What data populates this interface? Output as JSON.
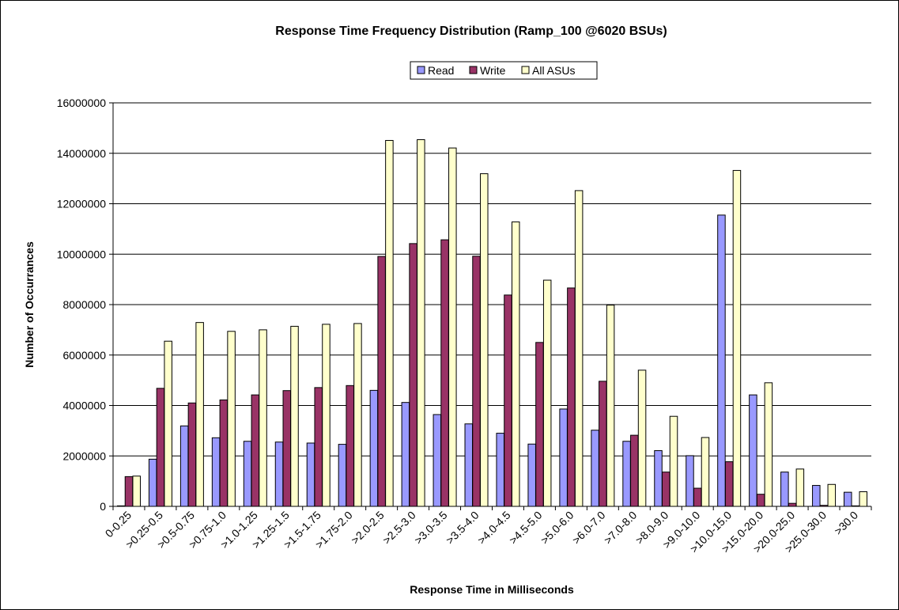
{
  "chart_data": {
    "type": "bar",
    "title": "Response Time Frequency Distribution (Ramp_100 @6020 BSUs)",
    "xlabel": "Response Time in Milliseconds",
    "ylabel": "Number of Occurrances",
    "ylim": [
      0,
      16000000
    ],
    "yticks": [
      0,
      2000000,
      4000000,
      6000000,
      8000000,
      10000000,
      12000000,
      14000000,
      16000000
    ],
    "grid": true,
    "legend_position": "top-center",
    "categories": [
      "0-0.25",
      ">0.25-0.5",
      ">0.5-0.75",
      ">0.75-1.0",
      ">1.0-1.25",
      ">1.25-1.5",
      ">1.5-1.75",
      ">1.75-2.0",
      ">2.0-2.5",
      ">2.5-3.0",
      ">3.0-3.5",
      ">3.5-4.0",
      ">4.0-4.5",
      ">4.5-5.0",
      ">5.0-6.0",
      ">6.0-7.0",
      ">7.0-8.0",
      ">8.0-9.0",
      ">9.0-10.0",
      ">10.0-15.0",
      ">15.0-20.0",
      ">20.0-25.0",
      ">25.0-30.0",
      ">30.0"
    ],
    "series": [
      {
        "name": "Read",
        "color": "#9999ff",
        "values": [
          20000,
          1870000,
          3190000,
          2720000,
          2580000,
          2550000,
          2510000,
          2460000,
          4600000,
          4120000,
          3640000,
          3270000,
          2900000,
          2470000,
          3860000,
          3020000,
          2580000,
          2210000,
          2010000,
          11550000,
          4420000,
          1360000,
          830000,
          560000
        ]
      },
      {
        "name": "Write",
        "color": "#993366",
        "values": [
          1180000,
          4680000,
          4100000,
          4220000,
          4420000,
          4590000,
          4710000,
          4790000,
          9910000,
          10420000,
          10570000,
          9920000,
          8380000,
          6500000,
          8660000,
          4960000,
          2820000,
          1360000,
          720000,
          1770000,
          480000,
          120000,
          40000,
          20000
        ]
      },
      {
        "name": "All ASUs",
        "color": "#ffffcc",
        "values": [
          1200000,
          6550000,
          7290000,
          6940000,
          7000000,
          7140000,
          7220000,
          7250000,
          14510000,
          14540000,
          14210000,
          13190000,
          11280000,
          8970000,
          12520000,
          7980000,
          5400000,
          3570000,
          2730000,
          13320000,
          4900000,
          1480000,
          870000,
          580000
        ]
      }
    ]
  }
}
